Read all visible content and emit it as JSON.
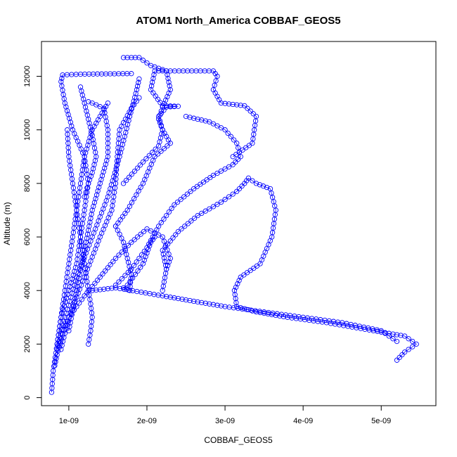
{
  "chart_data": {
    "type": "scatter",
    "title": "ATOM1 North_America COBBAF_GEOS5",
    "xlabel": "COBBAF_GEOS5",
    "ylabel": "Altitude (m)",
    "xlim": [
      6.5e-10,
      5.7e-09
    ],
    "ylim": [
      -300,
      13300
    ],
    "xticks": [
      1e-09,
      2e-09,
      3e-09,
      4e-09,
      5e-09
    ],
    "xtick_labels": [
      "1e-09",
      "2e-09",
      "3e-09",
      "4e-09",
      "5e-09"
    ],
    "yticks": [
      0,
      2000,
      4000,
      6000,
      8000,
      10000,
      12000
    ],
    "ytick_labels": [
      "0",
      "2000",
      "4000",
      "6000",
      "8000",
      "10000",
      "12000"
    ],
    "grid": false,
    "colors": {
      "series": "#0000ff",
      "axes": "#000000",
      "background": "#ffffff"
    },
    "marker": "open-circle",
    "series": [
      {
        "x": [
          7.8e-10,
          8e-10,
          8.5e-10,
          9e-10,
          1e-09,
          1.1e-09,
          1.15e-09,
          1.2e-09,
          1.25e-09,
          1.2e-09,
          1.05e-09,
          9.5e-10,
          9e-10,
          9.2e-10,
          1.15e-09,
          1.8e-09
        ],
        "y": [
          200,
          1000,
          2000,
          3000,
          4000,
          5000,
          6000,
          7000,
          8000,
          9000,
          10000,
          11000,
          11800,
          12050,
          12080,
          12100
        ]
      },
      {
        "x": [
          8.5e-10,
          9.5e-10,
          1.1e-09,
          1.3e-09,
          1.5e-09,
          1.65e-09,
          1.78e-09,
          1.87e-09,
          1.9e-09
        ],
        "y": [
          1800,
          3000,
          4500,
          6000,
          7500,
          9000,
          10500,
          11500,
          11900
        ]
      },
      {
        "x": [
          9e-10,
          1e-09,
          1.2e-09,
          1.4e-09,
          1.55e-09,
          1.6e-09,
          1.62e-09,
          1.65e-09,
          1.8e-09,
          1.9e-09
        ],
        "y": [
          1800,
          3000,
          4500,
          6000,
          7000,
          8000,
          9000,
          10000,
          10800,
          11200
        ]
      },
      {
        "x": [
          1e-09,
          1.1e-09,
          1.2e-09,
          1.3e-09,
          1.4e-09,
          1.5e-09,
          1.5e-09,
          1.45e-09,
          1.3e-09,
          1.25e-09
        ],
        "y": [
          2500,
          4000,
          5500,
          7000,
          8000,
          9000,
          10000,
          10800,
          11000,
          11050
        ]
      },
      {
        "x": [
          1.6e-09,
          1.75e-09,
          1.95e-09,
          2.1e-09,
          2.3e-09,
          2.2e-09,
          2.15e-09,
          2.25e-09,
          2.4e-09,
          2.2e-09,
          2.05e-09,
          2.1e-09,
          2.3e-09,
          2.85e-09,
          2.9e-09,
          2.85e-09,
          2.95e-09,
          3.25e-09,
          3.4e-09,
          3.35e-09,
          3.1e-09
        ],
        "y": [
          6400,
          7000,
          8000,
          9000,
          9500,
          10000,
          10500,
          10850,
          10880,
          10900,
          11500,
          12200,
          12200,
          12200,
          12000,
          11500,
          11000,
          10900,
          10500,
          9500,
          9000
        ]
      },
      {
        "x": [
          1.7e-09,
          1.95e-09,
          2.15e-09,
          2.2e-09,
          2.15e-09,
          2.2e-09,
          2.3e-09,
          2.25e-09,
          2.05e-09,
          1.9e-09,
          1.7e-09
        ],
        "y": [
          8000,
          8800,
          9400,
          10000,
          10400,
          10850,
          11500,
          12200,
          12400,
          12700,
          12700
        ]
      },
      {
        "x": [
          2.2e-09,
          2.25e-09,
          2.2e-09,
          2.4e-09,
          2.65e-09,
          2.95e-09,
          3.15e-09,
          3.25e-09,
          3.3e-09,
          3.4e-09,
          3.58e-09,
          3.65e-09,
          3.6e-09,
          3.45e-09,
          3.2e-09,
          3.12e-09,
          3.15e-09,
          3.4e-09,
          3.8e-09,
          4.3e-09,
          4.9e-09,
          5.3e-09,
          5.45e-09,
          5.3e-09,
          5.2e-09
        ],
        "y": [
          4000,
          4800,
          5500,
          6200,
          6800,
          7300,
          7700,
          8000,
          8200,
          8000,
          7800,
          7000,
          6000,
          5000,
          4500,
          4000,
          3400,
          3200,
          3000,
          2800,
          2500,
          2300,
          2000,
          1700,
          1400
        ]
      },
      {
        "x": [
          1.6e-09,
          1.8e-09,
          2e-09,
          2.15e-09,
          2.35e-09,
          2.6e-09,
          2.85e-09,
          3.1e-09,
          3.2e-09,
          3.15e-09,
          3e-09,
          2.8e-09,
          2.5e-09
        ],
        "y": [
          4200,
          4800,
          5600,
          6400,
          7200,
          7800,
          8300,
          8700,
          9000,
          9500,
          10000,
          10300,
          10500
        ]
      },
      {
        "x": [
          1.3e-09,
          1.6e-09,
          2.2e-09,
          2.6e-09,
          3e-09,
          3.5e-09,
          4e-09,
          4.5e-09,
          5e-09,
          5.2e-09
        ],
        "y": [
          4000,
          4100,
          3800,
          3600,
          3400,
          3200,
          3000,
          2800,
          2500,
          2100
        ]
      },
      {
        "x": [
          1.25e-09,
          1.28e-09,
          1.3e-09,
          1.28e-09,
          1.25e-09,
          1.2e-09,
          1.15e-09,
          1.1e-09,
          1.05e-09,
          1e-09,
          9.8e-10
        ],
        "y": [
          2000,
          2500,
          3000,
          3500,
          4000,
          5000,
          6000,
          7000,
          8000,
          9000,
          10000
        ]
      },
      {
        "x": [
          8.5e-10,
          9e-10,
          9.5e-10,
          1e-09,
          1.05e-09,
          1.1e-09,
          1.15e-09,
          1.2e-09,
          1.3e-09,
          1.4e-09,
          1.5e-09
        ],
        "y": [
          2000,
          3000,
          4000,
          5000,
          6000,
          7000,
          8000,
          9000,
          10000,
          10500,
          11000
        ]
      },
      {
        "x": [
          1.6e-09,
          1.7e-09,
          1.75e-09,
          1.8e-09,
          1.78e-09,
          1.7e-09,
          1.75e-09,
          1.85e-09,
          1.95e-09,
          2e-09,
          2.05e-09,
          2.1e-09
        ],
        "y": [
          6400,
          5800,
          5200,
          4600,
          4000,
          4100,
          4200,
          4600,
          5000,
          5400,
          5800,
          6000
        ]
      },
      {
        "x": [
          8.2e-10,
          8.5e-10,
          9e-10,
          1e-09,
          1.2e-09,
          1.4e-09,
          1.6e-09,
          1.8e-09,
          2e-09,
          2.2e-09,
          2.3e-09,
          2.25e-09
        ],
        "y": [
          1200,
          1600,
          2200,
          3000,
          3800,
          4500,
          5200,
          5800,
          6300,
          6000,
          5200,
          4800
        ]
      },
      {
        "x": [
          1.15e-09,
          1.2e-09,
          1.25e-09,
          1.3e-09,
          1.35e-09,
          1.3e-09,
          1.25e-09,
          1.2e-09
        ],
        "y": [
          11600,
          11000,
          10400,
          9800,
          9000,
          8400,
          8000,
          7500
        ]
      }
    ]
  }
}
